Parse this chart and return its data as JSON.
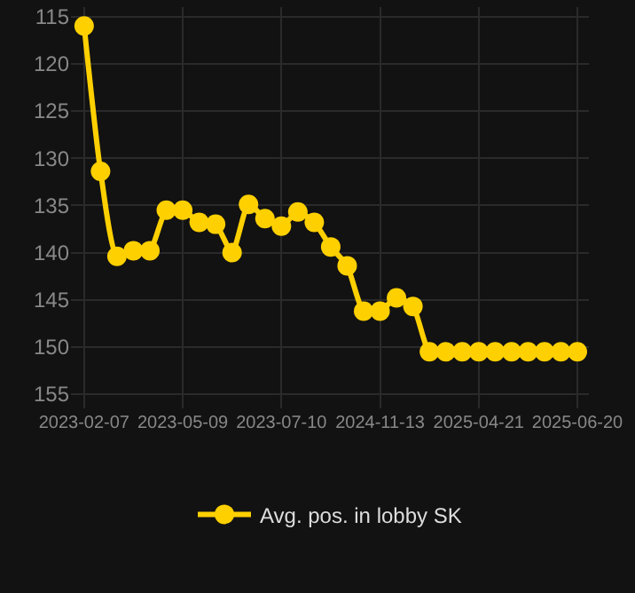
{
  "chart_data": {
    "type": "line",
    "categories": [
      "2023-02-07",
      null,
      null,
      null,
      null,
      null,
      "2023-05-09",
      null,
      null,
      null,
      null,
      null,
      "2023-07-10",
      null,
      null,
      null,
      null,
      null,
      "2024-11-13",
      null,
      null,
      null,
      null,
      null,
      "2025-04-21",
      null,
      null,
      null,
      null,
      null,
      "2025-06-20"
    ],
    "series": [
      {
        "name": "Avg. pos. in lobby SK",
        "color": "#ffd000",
        "values": [
          116,
          131.4,
          140.4,
          139.8,
          139.8,
          135.5,
          135.5,
          136.8,
          137.0,
          140.0,
          134.9,
          136.4,
          137.2,
          135.7,
          136.8,
          139.4,
          141.4,
          146.2,
          146.2,
          144.8,
          145.7,
          150.5,
          150.5,
          150.5,
          150.5,
          150.5,
          150.5,
          150.5,
          150.5,
          150.5,
          150.5
        ]
      }
    ],
    "ylim": [
      156.5,
      114
    ],
    "yticks": [
      115,
      120,
      125,
      130,
      135,
      140,
      145,
      150,
      155
    ],
    "grid": true,
    "legend": "bottom",
    "marker": "circle",
    "line_style": "solid"
  }
}
